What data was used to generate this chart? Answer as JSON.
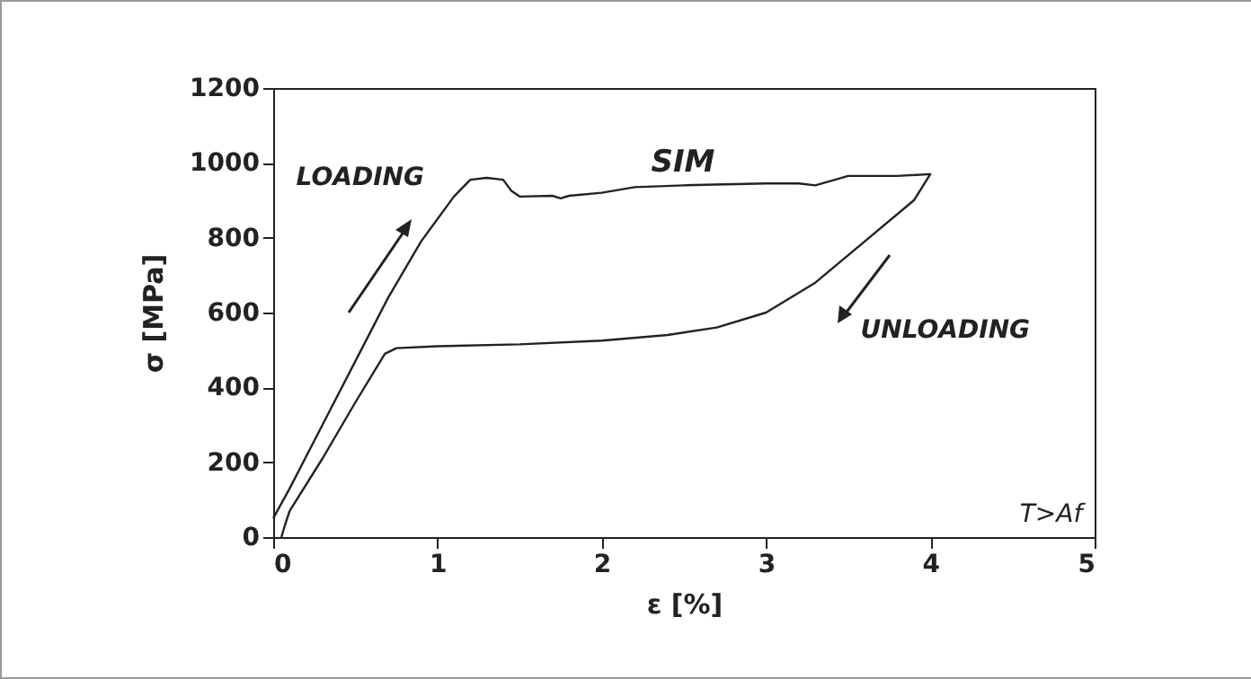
{
  "chart_data": {
    "type": "line",
    "xlabel": "ε [%]",
    "ylabel": "σ [MPa]",
    "xlim": [
      0,
      5
    ],
    "xticks": [
      0,
      1,
      2,
      3,
      4,
      5
    ],
    "ylim": [
      0,
      1200
    ],
    "yticks": [
      0,
      200,
      400,
      600,
      800,
      1000,
      1200
    ],
    "grid": false,
    "series": [
      {
        "color": "#222222",
        "x": [
          0,
          0.1,
          0.3,
          0.5,
          0.7,
          0.9,
          1.1,
          1.2,
          1.3,
          1.4,
          1.45,
          1.5,
          1.7,
          1.75,
          1.8,
          2.0,
          2.2,
          2.5,
          3.0,
          3.2,
          3.3,
          3.5,
          3.8,
          4.0,
          3.9,
          3.6,
          3.3,
          3.0,
          2.7,
          2.4,
          2.0,
          1.5,
          1.0,
          0.75,
          0.68,
          0.5,
          0.3,
          0.1,
          0.07,
          0.05
        ],
        "values": [
          50,
          130,
          300,
          470,
          640,
          790,
          910,
          955,
          960,
          955,
          925,
          910,
          912,
          905,
          912,
          920,
          935,
          940,
          945,
          945,
          940,
          965,
          965,
          970,
          900,
          790,
          680,
          600,
          560,
          540,
          525,
          515,
          510,
          505,
          490,
          360,
          210,
          70,
          30,
          0
        ]
      }
    ],
    "annotations": [
      "LOADING",
      "SIM",
      "UNLOADING",
      "T>Af"
    ]
  }
}
